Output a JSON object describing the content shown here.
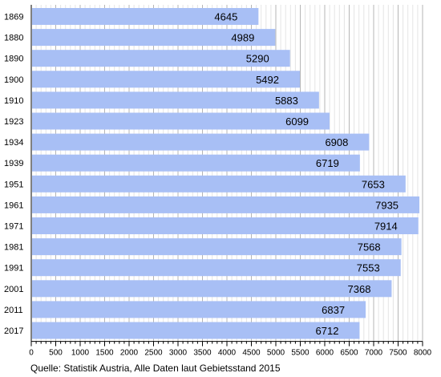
{
  "chart_data": {
    "type": "bar",
    "orientation": "horizontal",
    "categories": [
      "1869",
      "1880",
      "1890",
      "1900",
      "1910",
      "1923",
      "1934",
      "1939",
      "1951",
      "1961",
      "1971",
      "1981",
      "1991",
      "2001",
      "2011",
      "2017"
    ],
    "values": [
      4645,
      4989,
      5290,
      5492,
      5883,
      6099,
      6908,
      6719,
      7653,
      7935,
      7914,
      7568,
      7553,
      7368,
      6837,
      6712
    ],
    "xlim": [
      0,
      8000
    ],
    "x_ticks": [
      0,
      500,
      1000,
      1500,
      2000,
      2500,
      3000,
      3500,
      4000,
      4500,
      5000,
      5500,
      6000,
      6500,
      7000,
      7500,
      8000
    ],
    "minor_tick_step": 100,
    "grid": true,
    "bar_color": "#a8bff5",
    "data_labels": true
  },
  "source_note": "Quelle: Statistik Austria, Alle Daten laut Gebietsstand 2015"
}
